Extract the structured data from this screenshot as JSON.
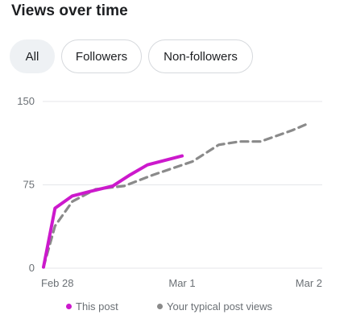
{
  "header": {
    "title": "Views over time"
  },
  "filters": [
    {
      "label": "All",
      "active": true
    },
    {
      "label": "Followers",
      "active": false
    },
    {
      "label": "Non-followers",
      "active": false
    }
  ],
  "colors": {
    "this_post": "#cc19cc",
    "typical": "#8a8a8a",
    "grid": "#e4e6ea",
    "tick_text": "#6b7075"
  },
  "chart_data": {
    "type": "line",
    "x": [
      "Feb 28",
      "Mar 1",
      "Mar 2"
    ],
    "xlim": [
      "Feb 28",
      "Mar 2"
    ],
    "ylim": [
      0,
      150
    ],
    "y_ticks": [
      0,
      75,
      150
    ],
    "y_tick_labels": [
      "0",
      "75",
      "150"
    ],
    "x_tick_labels": [
      "Feb 28",
      "Mar 1",
      "Mar 2"
    ],
    "grid": true,
    "legend": "bottom",
    "series": [
      {
        "name": "This post",
        "style": "solid",
        "color": "#cc19cc",
        "points": [
          {
            "x": "Feb 28 00:00",
            "y": 1
          },
          {
            "x": "Feb 28 02:00",
            "y": 54
          },
          {
            "x": "Feb 28 05:00",
            "y": 65
          },
          {
            "x": "Feb 28 08:00",
            "y": 69
          },
          {
            "x": "Feb 28 12:00",
            "y": 74
          },
          {
            "x": "Feb 28 15:00",
            "y": 84
          },
          {
            "x": "Feb 28 18:00",
            "y": 93
          },
          {
            "x": "Feb 28 24:00",
            "y": 101
          }
        ]
      },
      {
        "name": "Your typical post views",
        "style": "dashed",
        "color": "#8a8a8a",
        "points": [
          {
            "x": "Feb 28 00:00",
            "y": 1
          },
          {
            "x": "Feb 28 02:00",
            "y": 38
          },
          {
            "x": "Feb 28 05:00",
            "y": 60
          },
          {
            "x": "Feb 28 09:00",
            "y": 71
          },
          {
            "x": "Feb 28 14:00",
            "y": 74
          },
          {
            "x": "Feb 28 19:00",
            "y": 84
          },
          {
            "x": "Mar 1 02:00",
            "y": 96
          },
          {
            "x": "Mar 1 07:00",
            "y": 111
          },
          {
            "x": "Mar 1 11:00",
            "y": 114
          },
          {
            "x": "Mar 1 15:00",
            "y": 114
          },
          {
            "x": "Mar 1 21:00",
            "y": 124
          },
          {
            "x": "Mar 2 00:00",
            "y": 130
          }
        ]
      }
    ]
  }
}
